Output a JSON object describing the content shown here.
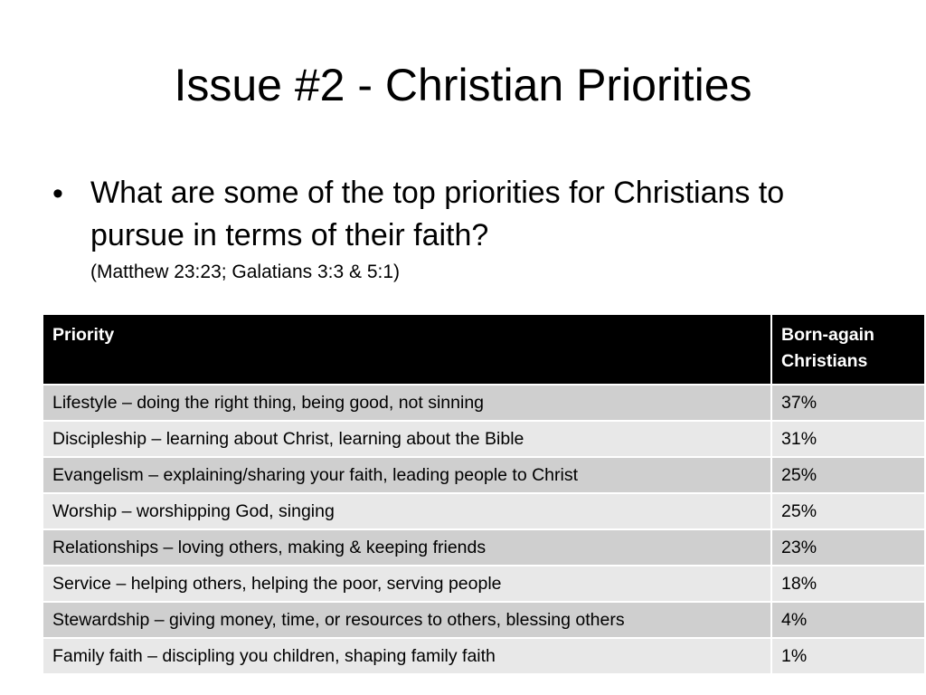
{
  "slide": {
    "title": "Issue #2 - Christian Priorities",
    "bullet": {
      "symbol": "•",
      "text": "What are some of the top priorities for Christians to pursue in terms of their faith?",
      "reference": "(Matthew 23:23; Galatians 3:3 & 5:1)"
    }
  },
  "table": {
    "headers": [
      "Priority",
      "Born-again Christians"
    ],
    "rows": [
      {
        "priority": "Lifestyle – doing the right thing, being good, not sinning",
        "value": "37%"
      },
      {
        "priority": "Discipleship – learning about Christ, learning about the Bible",
        "value": "31%"
      },
      {
        "priority": "Evangelism – explaining/sharing your faith, leading people to Christ",
        "value": "25%"
      },
      {
        "priority": "Worship – worshipping God, singing",
        "value": "25%"
      },
      {
        "priority": "Relationships – loving others, making & keeping friends",
        "value": "23%"
      },
      {
        "priority": "Service – helping others, helping the poor, serving people",
        "value": "18%"
      },
      {
        "priority": "Stewardship – giving money, time, or resources to others, blessing others",
        "value": "4%"
      },
      {
        "priority": "Family faith – discipling you children, shaping family faith",
        "value": "1%"
      }
    ]
  },
  "colors": {
    "header_bg": "#000000",
    "row_dark": "#cfcfcf",
    "row_light": "#e8e8e8"
  }
}
